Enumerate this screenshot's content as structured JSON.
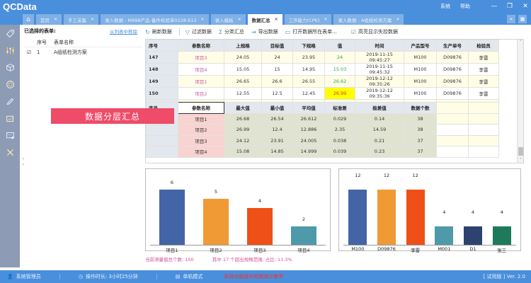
{
  "app": {
    "title": "QCData"
  },
  "window": {
    "links": [
      "系统",
      "帮助"
    ],
    "controls": [
      "—",
      "❐",
      "✕"
    ]
  },
  "tabs": [
    {
      "label": "首页",
      "active": false
    },
    {
      "label": "手工采集",
      "active": false
    },
    {
      "label": "录入数据 - M998产品-备件检验单0228:613",
      "active": false
    },
    {
      "label": "录入模板",
      "active": false
    },
    {
      "label": "数据汇总",
      "active": true
    },
    {
      "label": "工序能力(CPK)",
      "active": false
    },
    {
      "label": "录入数据 - A组纸检测方案",
      "active": false
    }
  ],
  "tab_tools": [
    "»",
    "▦"
  ],
  "form_panel": {
    "title": "已选择的表单:",
    "link": "从列表中移除",
    "columns": [
      "序号",
      "表单名称"
    ],
    "rows": [
      {
        "checked": true,
        "index": "1",
        "name": "A组纸检测方案"
      }
    ]
  },
  "toolbar": {
    "refresh": "刷新数据",
    "filter": "过滤数据",
    "group": "分类汇总",
    "export": "导出数据",
    "open": "打开数据所在表单...",
    "highlight": "高亮显示失控数据"
  },
  "main_table": {
    "columns": [
      "序号",
      "参数名称",
      "上规格",
      "目标值",
      "下规格",
      "值",
      "时间",
      "产品型号",
      "生产单号",
      "检验员"
    ],
    "rows": [
      {
        "index": "147",
        "param": "项目3",
        "usl": "24.05",
        "target": "24",
        "lsl": "23.95",
        "value": "24",
        "time": "2019-11-15 09:45:27",
        "model": "M100",
        "order": "D09876",
        "inspector": "李雷"
      },
      {
        "index": "148",
        "param": "项目4",
        "usl": "15.05",
        "target": "15",
        "lsl": "14.95",
        "value": "15.03",
        "time": "2019-11-15 09:45:32",
        "model": "M100",
        "order": "D09876",
        "inspector": "李雷"
      },
      {
        "index": "149",
        "param": "项目1",
        "usl": "26.65",
        "target": "26.6",
        "lsl": "26.55",
        "value": "26.62",
        "time": "2019-12-12 09:35:26",
        "model": "M100",
        "order": "D09876",
        "inspector": "李雷"
      },
      {
        "index": "150",
        "param": "项目2",
        "usl": "12.55",
        "target": "12.5",
        "lsl": "12.45",
        "value": "26.99",
        "time": "2019-12-12 09:35:36",
        "model": "M100",
        "order": "D09876",
        "inspector": "李雷"
      }
    ]
  },
  "summary_table": {
    "columns": [
      "序号",
      "参数名称",
      "最大值",
      "最小值",
      "平均值",
      "标准差",
      "极差值",
      "数据个数"
    ],
    "rows": [
      {
        "param": "项目1",
        "max": "26.68",
        "min": "26.54",
        "avg": "26.612",
        "std": "0.029",
        "range": "0.14",
        "count": "38"
      },
      {
        "param": "项目2",
        "max": "26.99",
        "min": "12.4",
        "avg": "12.886",
        "std": "2.35",
        "range": "14.59",
        "count": "38"
      },
      {
        "param": "项目3",
        "max": "24.12",
        "min": "23.91",
        "avg": "24.005",
        "std": "0.038",
        "range": "0.21",
        "count": "37"
      },
      {
        "param": "项目4",
        "max": "15.08",
        "min": "14.85",
        "avg": "14.999",
        "std": "0.039",
        "range": "0.23",
        "count": "37"
      }
    ]
  },
  "overlay": {
    "label": "数据分层汇总"
  },
  "chart_data": [
    {
      "type": "bar",
      "title": "",
      "categories": [
        "项目1",
        "项目2",
        "项目3",
        "项目4"
      ],
      "values": [
        6,
        5,
        4,
        2
      ],
      "colors": [
        "#4365a6",
        "#f09a36",
        "#ee5018",
        "#4e9aaa"
      ],
      "xlabel": "",
      "ylabel": "",
      "ylim": [
        0,
        6
      ],
      "grid": false,
      "data_labels": true
    },
    {
      "type": "bar",
      "title": "",
      "categories": [
        "M100",
        "D09876",
        "李雷",
        "M001",
        "D1",
        "张三"
      ],
      "values": [
        12,
        12,
        12,
        4,
        4,
        4
      ],
      "colors": [
        "#4365a6",
        "#f09a36",
        "#ee5018",
        "#4e9aaa",
        "#2e4270",
        "#1f7a5c"
      ],
      "xlabel": "",
      "ylabel": "",
      "ylim": [
        0,
        12
      ],
      "grid": false,
      "data_labels": true
    }
  ],
  "footnote": {
    "total": "当前测量值总个数: 150",
    "out_of_spec": "其中 17 个超出规格范围, 占比: 11.3%"
  },
  "statusbar": {
    "user": "系统管理员",
    "duration": "操作时长: 3小时25分钟",
    "mode": "单机模式",
    "warning": "系统功能操作视频演示教学",
    "version": "[ 试用版 ] Ver. 2.0"
  }
}
